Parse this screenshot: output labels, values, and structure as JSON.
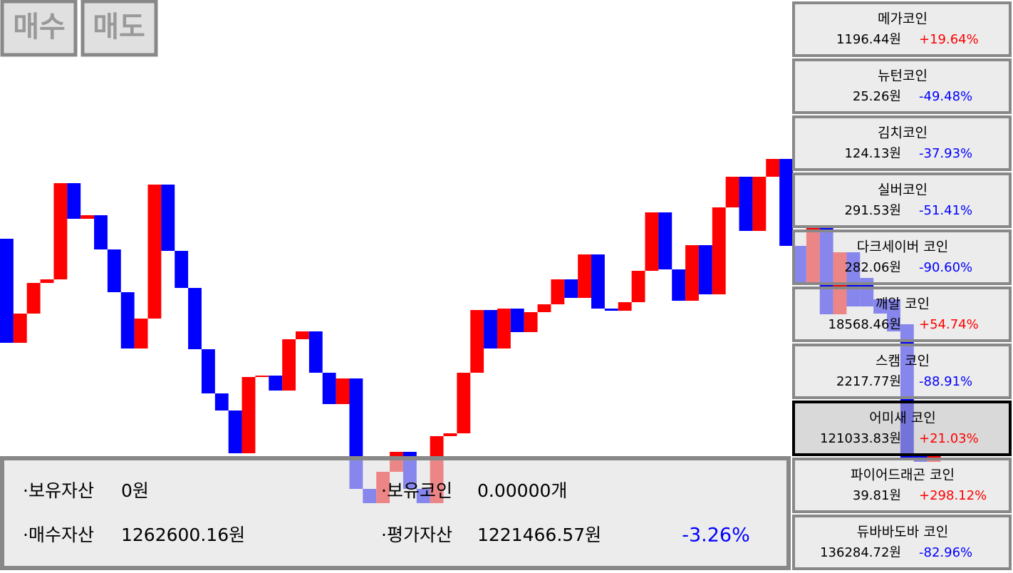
{
  "buttons": [
    "매수",
    "매도"
  ],
  "chart": {
    "up_color": "#ff0000",
    "down_color": "#0000ff",
    "candles": [
      {
        "open": 465,
        "close": 319
      },
      {
        "open": 319,
        "close": 360
      },
      {
        "open": 360,
        "close": 403
      },
      {
        "open": 403,
        "close": 408
      },
      {
        "open": 408,
        "close": 543
      },
      {
        "open": 543,
        "close": 493
      },
      {
        "open": 493,
        "close": 498
      },
      {
        "open": 498,
        "close": 450
      },
      {
        "open": 450,
        "close": 390
      },
      {
        "open": 390,
        "close": 311
      },
      {
        "open": 311,
        "close": 353
      },
      {
        "open": 353,
        "close": 541
      },
      {
        "open": 541,
        "close": 448
      },
      {
        "open": 448,
        "close": 396
      },
      {
        "open": 396,
        "close": 310
      },
      {
        "open": 310,
        "close": 248
      },
      {
        "open": 248,
        "close": 224
      },
      {
        "open": 224,
        "close": 164
      },
      {
        "open": 164,
        "close": 271
      },
      {
        "open": 271,
        "close": 273
      },
      {
        "open": 273,
        "close": 252
      },
      {
        "open": 252,
        "close": 324
      },
      {
        "open": 324,
        "close": 335
      },
      {
        "open": 335,
        "close": 277
      },
      {
        "open": 277,
        "close": 233
      },
      {
        "open": 233,
        "close": 269
      },
      {
        "open": 269,
        "close": 114
      },
      {
        "open": 114,
        "close": 94
      },
      {
        "open": 94,
        "close": 138
      },
      {
        "open": 138,
        "close": 166
      },
      {
        "open": 166,
        "close": 114
      },
      {
        "open": 114,
        "close": 94
      },
      {
        "open": 94,
        "close": 188
      },
      {
        "open": 188,
        "close": 192
      },
      {
        "open": 192,
        "close": 277
      },
      {
        "open": 277,
        "close": 365
      },
      {
        "open": 365,
        "close": 311
      },
      {
        "open": 311,
        "close": 367
      },
      {
        "open": 367,
        "close": 334
      },
      {
        "open": 334,
        "close": 362
      },
      {
        "open": 362,
        "close": 373
      },
      {
        "open": 373,
        "close": 408
      },
      {
        "open": 408,
        "close": 382
      },
      {
        "open": 382,
        "close": 443
      },
      {
        "open": 443,
        "close": 367
      },
      {
        "open": 367,
        "close": 364
      },
      {
        "open": 364,
        "close": 376
      },
      {
        "open": 376,
        "close": 420
      },
      {
        "open": 420,
        "close": 502
      },
      {
        "open": 502,
        "close": 422
      },
      {
        "open": 422,
        "close": 378
      },
      {
        "open": 378,
        "close": 456
      },
      {
        "open": 456,
        "close": 387
      },
      {
        "open": 387,
        "close": 509
      },
      {
        "open": 509,
        "close": 552
      },
      {
        "open": 552,
        "close": 476
      },
      {
        "open": 476,
        "close": 552
      },
      {
        "open": 552,
        "close": 577
      },
      {
        "open": 577,
        "close": 455
      },
      {
        "open": 455,
        "close": 403
      },
      {
        "open": 403,
        "close": 480
      },
      {
        "open": 480,
        "close": 359
      },
      {
        "open": 359,
        "close": 446
      },
      {
        "open": 446,
        "close": 370
      },
      {
        "open": 410,
        "close": 370
      },
      {
        "open": 380,
        "close": 360
      },
      {
        "open": 380,
        "close": 335
      },
      {
        "open": 345,
        "close": 155
      },
      {
        "open": 160,
        "close": 152
      },
      {
        "open": 152,
        "close": 160
      }
    ]
  },
  "coins": [
    {
      "name": "메가코인",
      "price": "1196.44원",
      "change": "+19.64%",
      "color": "#ff0000"
    },
    {
      "name": "뉴턴코인",
      "price": "25.26원",
      "change": "-49.48%",
      "color": "#0000ff"
    },
    {
      "name": "김치코인",
      "price": "124.13원",
      "change": "-37.93%",
      "color": "#0000ff"
    },
    {
      "name": "실버코인",
      "price": "291.53원",
      "change": "-51.41%",
      "color": "#0000ff"
    },
    {
      "name": "다크세이버 코인",
      "price": "282.06원",
      "change": "-90.60%",
      "color": "#0000ff"
    },
    {
      "name": "깨알 코인",
      "price": "18568.46원",
      "change": "+54.74%",
      "color": "#ff0000"
    },
    {
      "name": "스캠 코인",
      "price": "2217.77원",
      "change": "-88.91%",
      "color": "#0000ff"
    },
    {
      "name": "어미새 코인",
      "price": "121033.83원",
      "change": "+21.03%",
      "color": "#ff0000"
    },
    {
      "name": "파이어드래곤 코인",
      "price": "39.81원",
      "change": "+298.12%",
      "color": "#ff0000"
    },
    {
      "name": "듀바바도바 코인",
      "price": "136284.72원",
      "change": "-82.96%",
      "color": "#0000ff"
    }
  ],
  "selected": 7,
  "portfolio": {
    "holdings_label": "·보유자산",
    "holdings": "0원",
    "coins_label": "·보유코인",
    "coins": "0.00000개",
    "bought_label": "·매수자산",
    "bought": "1262600.16원",
    "eval_label": "·평가자산",
    "eval": "1221466.57원",
    "return": "-3.26%",
    "return_color": "#0000ff"
  }
}
